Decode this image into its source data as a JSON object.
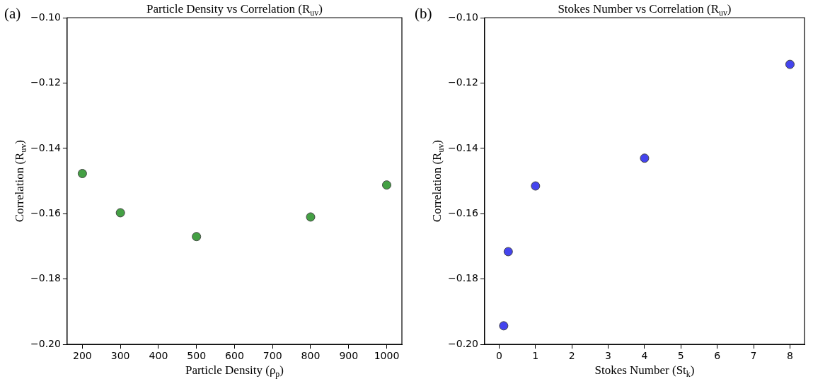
{
  "chart_data": [
    {
      "type": "scatter",
      "title": "Particle Density vs Correlation (R$_{uv}$)",
      "xlabel": "Particle Density (ρ$_{p}$)",
      "ylabel": "Correlation (R$_{uv}$)",
      "annotations": [
        "(a)"
      ],
      "x": [
        200,
        300,
        500,
        800,
        1000
      ],
      "values": [
        -0.1477,
        -0.1597,
        -0.167,
        -0.161,
        -0.1512
      ],
      "color": "#44a044",
      "marker": "circle",
      "grid": false,
      "xlim": [
        160,
        1040
      ],
      "xticks": [
        200,
        300,
        400,
        500,
        600,
        700,
        800,
        900,
        1000
      ],
      "ylim": [
        -0.2,
        -0.1
      ],
      "yticks": [
        {
          "value": -0.2,
          "label": "−0.20"
        },
        {
          "value": -0.18,
          "label": "−0.18"
        },
        {
          "value": -0.16,
          "label": "−0.16"
        },
        {
          "value": -0.14,
          "label": "−0.14"
        },
        {
          "value": -0.12,
          "label": "−0.12"
        },
        {
          "value": -0.1,
          "label": "−0.10"
        }
      ]
    },
    {
      "type": "scatter",
      "title": "Stokes Number vs Correlation (R$_{uv}$)",
      "xlabel": "Stokes Number (St$_{k}$)",
      "ylabel": "Correlation (R$_{uv}$)",
      "annotations": [
        "(b)"
      ],
      "x": [
        0.125,
        0.25,
        1,
        4,
        8
      ],
      "values": [
        -0.1943,
        -0.1716,
        -0.1515,
        -0.143,
        -0.1143
      ],
      "color": "#4444ee",
      "marker": "circle",
      "grid": false,
      "xlim": [
        -0.4,
        8.4
      ],
      "xticks": [
        0,
        1,
        2,
        3,
        4,
        5,
        6,
        7,
        8
      ],
      "ylim": [
        -0.2,
        -0.1
      ],
      "yticks": [
        {
          "value": -0.2,
          "label": "−0.20"
        },
        {
          "value": -0.18,
          "label": "−0.18"
        },
        {
          "value": -0.16,
          "label": "−0.16"
        },
        {
          "value": -0.14,
          "label": "−0.14"
        },
        {
          "value": -0.12,
          "label": "−0.12"
        },
        {
          "value": -0.1,
          "label": "−0.10"
        }
      ]
    }
  ]
}
